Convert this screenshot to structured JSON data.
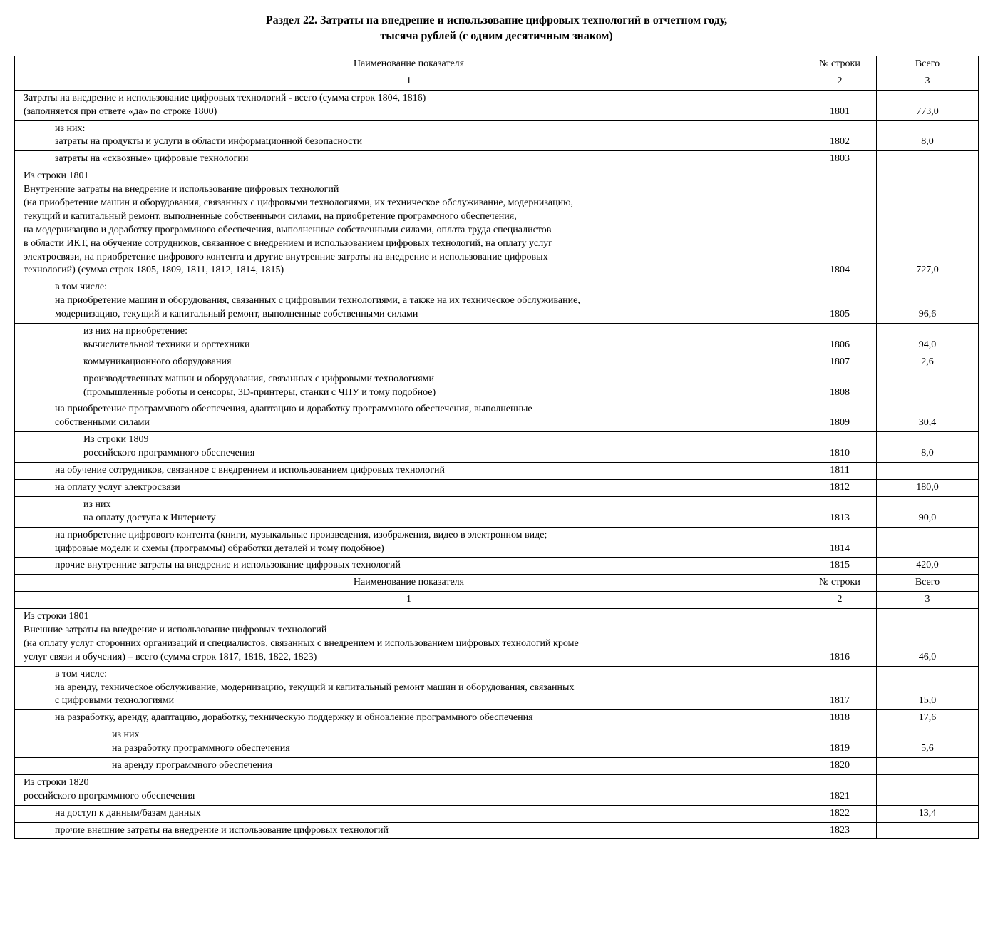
{
  "title_line1": "Раздел 22. Затраты на внедрение и использование цифровых технологий в отчетном году,",
  "title_line2": "тысяча рублей (с одним десятичным знаком)",
  "headers": {
    "name": "Наименование показателя",
    "row": "№ строки",
    "total": "Всего",
    "c1": "1",
    "c2": "2",
    "c3": "3"
  },
  "rows": [
    {
      "indent": 0,
      "lines": [
        "Затраты на внедрение и использование цифровых технологий - всего (сумма строк 1804, 1816)",
        "(заполняется при ответе «да» по строке 1800)"
      ],
      "row": "1801",
      "total": "773,0"
    },
    {
      "indent": 1,
      "lines": [
        "из них:",
        "затраты на продукты и услуги в области информационной безопасности"
      ],
      "row": "1802",
      "total": "8,0"
    },
    {
      "indent": 1,
      "lines": [
        "затраты на «сквозные» цифровые технологии"
      ],
      "row": "1803",
      "total": ""
    },
    {
      "indent": 0,
      "lines": [
        "Из строки 1801",
        "Внутренние затраты на внедрение и использование цифровых технологий",
        "(на приобретение машин и оборудования, связанных с цифровыми технологиями, их техническое обслуживание, модернизацию,",
        "текущий и капитальный ремонт, выполненные собственными силами, на приобретение программного обеспечения,",
        "на модернизацию и доработку программного обеспечения, выполненные собственными силами, оплата труда специалистов",
        "в области ИКТ, на обучение сотрудников, связанное с внедрением и использованием цифровых технологий, на оплату услуг",
        "электросвязи, на приобретение цифрового контента и другие внутренние затраты на внедрение и использование цифровых",
        "технологий) (сумма строк 1805, 1809, 1811, 1812, 1814, 1815)"
      ],
      "row": "1804",
      "total": "727,0"
    },
    {
      "indent": 1,
      "lines": [
        "в том числе:",
        "на приобретение машин и оборудования, связанных с цифровыми технологиями, а также на их техническое обслуживание,",
        "модернизацию, текущий и капитальный ремонт, выполненные собственными силами"
      ],
      "row": "1805",
      "total": "96,6"
    },
    {
      "indent": 2,
      "lines": [
        "из них на приобретение:",
        "вычислительной техники и оргтехники"
      ],
      "row": "1806",
      "total": "94,0"
    },
    {
      "indent": 2,
      "lines": [
        "коммуникационного оборудования"
      ],
      "row": "1807",
      "total": "2,6"
    },
    {
      "indent": 2,
      "lines": [
        "производственных машин и оборудования, связанных с цифровыми технологиями",
        "(промышленные роботы и сенсоры, 3D-принтеры, станки с ЧПУ и тому подобное)"
      ],
      "row": "1808",
      "total": ""
    },
    {
      "indent": 1,
      "lines": [
        "на приобретение программного обеспечения, адаптацию и доработку программного обеспечения, выполненные",
        "собственными силами"
      ],
      "row": "1809",
      "total": "30,4"
    },
    {
      "indent": 2,
      "lines": [
        "Из строки 1809",
        "российского программного обеспечения"
      ],
      "row": "1810",
      "total": "8,0"
    },
    {
      "indent": 1,
      "lines": [
        "на обучение сотрудников, связанное с внедрением и использованием цифровых технологий"
      ],
      "row": "1811",
      "total": ""
    },
    {
      "indent": 1,
      "lines": [
        "на оплату услуг электросвязи"
      ],
      "row": "1812",
      "total": "180,0"
    },
    {
      "indent": 2,
      "lines": [
        "из них",
        "на оплату доступа к Интернету"
      ],
      "row": "1813",
      "total": "90,0"
    },
    {
      "indent": 1,
      "lines": [
        "на приобретение цифрового контента (книги, музыкальные произведения, изображения, видео в электронном виде;",
        "цифровые модели и схемы (программы) обработки деталей и тому подобное)"
      ],
      "row": "1814",
      "total": ""
    },
    {
      "indent": 1,
      "lines": [
        "прочие внутренние затраты на внедрение и использование цифровых технологий"
      ],
      "row": "1815",
      "total": "420,0"
    },
    {
      "header": true
    },
    {
      "indent": 0,
      "lines": [
        "Из строки 1801",
        "Внешние затраты на внедрение и использование цифровых технологий",
        "(на оплату услуг сторонних организаций и специалистов, связанных с внедрением и использованием цифровых технологий кроме",
        "услуг связи и обучения) – всего (сумма строк 1817, 1818, 1822, 1823)"
      ],
      "row": "1816",
      "total": "46,0"
    },
    {
      "indent": 1,
      "lines": [
        "в том числе:",
        "на аренду, техническое обслуживание, модернизацию, текущий и капитальный ремонт машин и оборудования, связанных",
        "с цифровыми технологиями"
      ],
      "row": "1817",
      "total": "15,0"
    },
    {
      "indent": 1,
      "lines": [
        "на разработку, аренду, адаптацию, доработку, техническую поддержку и обновление программного обеспечения"
      ],
      "row": "1818",
      "total": "17,6"
    },
    {
      "indent": 3,
      "lines": [
        "из них",
        "на разработку программного обеспечения"
      ],
      "row": "1819",
      "total": "5,6"
    },
    {
      "indent": 3,
      "lines": [
        "на аренду программного обеспечения"
      ],
      "row": "1820",
      "total": ""
    },
    {
      "indent": 0,
      "lines": [
        "Из строки 1820",
        "российского программного обеспечения"
      ],
      "row": "1821",
      "total": ""
    },
    {
      "indent": 1,
      "lines": [
        "на доступ к данным/базам данных"
      ],
      "row": "1822",
      "total": "13,4"
    },
    {
      "indent": 1,
      "lines": [
        "прочие внешние затраты на внедрение и использование цифровых технологий"
      ],
      "row": "1823",
      "total": ""
    }
  ]
}
